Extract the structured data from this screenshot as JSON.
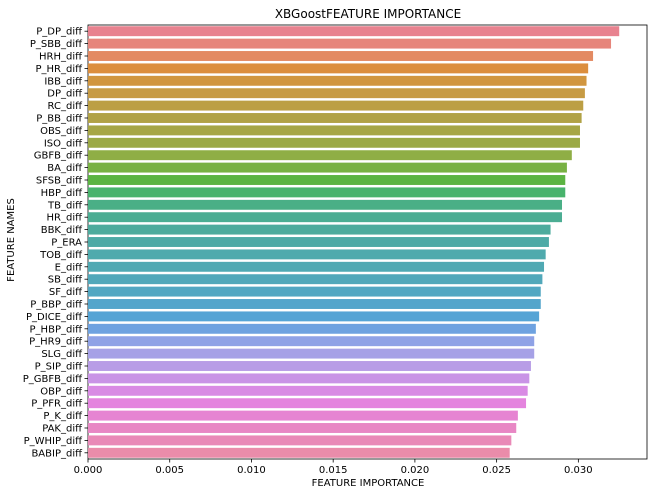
{
  "chart_data": {
    "type": "bar",
    "orientation": "horizontal",
    "title": "XBGoostFEATURE IMPORTANCE",
    "xlabel": "FEATURE IMPORTANCE",
    "ylabel": "FEATURE NAMES",
    "xlim": [
      0,
      0.0342
    ],
    "xticks": [
      "0.000",
      "0.005",
      "0.010",
      "0.015",
      "0.020",
      "0.025",
      "0.030"
    ],
    "grid": false,
    "legend": "none",
    "categories": [
      "P_DP_diff",
      "P_SBB_diff",
      "HRH_diff",
      "P_HR_diff",
      "IBB_diff",
      "DP_diff",
      "RC_diff",
      "P_BB_diff",
      "OBS_diff",
      "ISO_diff",
      "GBFB_diff",
      "BA_diff",
      "SFSB_diff",
      "HBP_diff",
      "TB_diff",
      "HR_diff",
      "BBK_diff",
      "P_ERA",
      "TOB_diff",
      "E_diff",
      "SB_diff",
      "SF_diff",
      "P_BBP_diff",
      "P_DICE_diff",
      "P_HBP_diff",
      "P_HR9_diff",
      "SLG_diff",
      "P_SIP_diff",
      "P_GBFB_diff",
      "OBP_diff",
      "P_PFR_diff",
      "P_K_diff",
      "PAK_diff",
      "P_WHIP_diff",
      "BABIP_diff"
    ],
    "values": [
      0.0325,
      0.032,
      0.0309,
      0.0306,
      0.0305,
      0.0304,
      0.0303,
      0.0302,
      0.0301,
      0.0301,
      0.0296,
      0.0293,
      0.0292,
      0.0292,
      0.029,
      0.029,
      0.0283,
      0.0282,
      0.028,
      0.0279,
      0.0278,
      0.0277,
      0.0277,
      0.0276,
      0.0274,
      0.0273,
      0.0273,
      0.0271,
      0.027,
      0.0269,
      0.0268,
      0.0263,
      0.0262,
      0.0259,
      0.0258
    ],
    "colors": [
      "#e8828f",
      "#e6857b",
      "#e38a62",
      "#dc8e3d",
      "#d1963f",
      "#c79b44",
      "#bc9f44",
      "#b1a245",
      "#a6a645",
      "#9ba945",
      "#8fae45",
      "#78b143",
      "#5bb442",
      "#48b36c",
      "#4aaf86",
      "#4bad93",
      "#4dab9d",
      "#4eaaa6",
      "#4faaad",
      "#50a9b3",
      "#51a8ba",
      "#52a7c2",
      "#53a5cb",
      "#55a4d5",
      "#6ea2e0",
      "#8fa2e6",
      "#a6a1e6",
      "#b89de6",
      "#c994e6",
      "#d98be4",
      "#e484de",
      "#e684d2",
      "#e887c4",
      "#e989b7",
      "#ea8caa"
    ]
  }
}
